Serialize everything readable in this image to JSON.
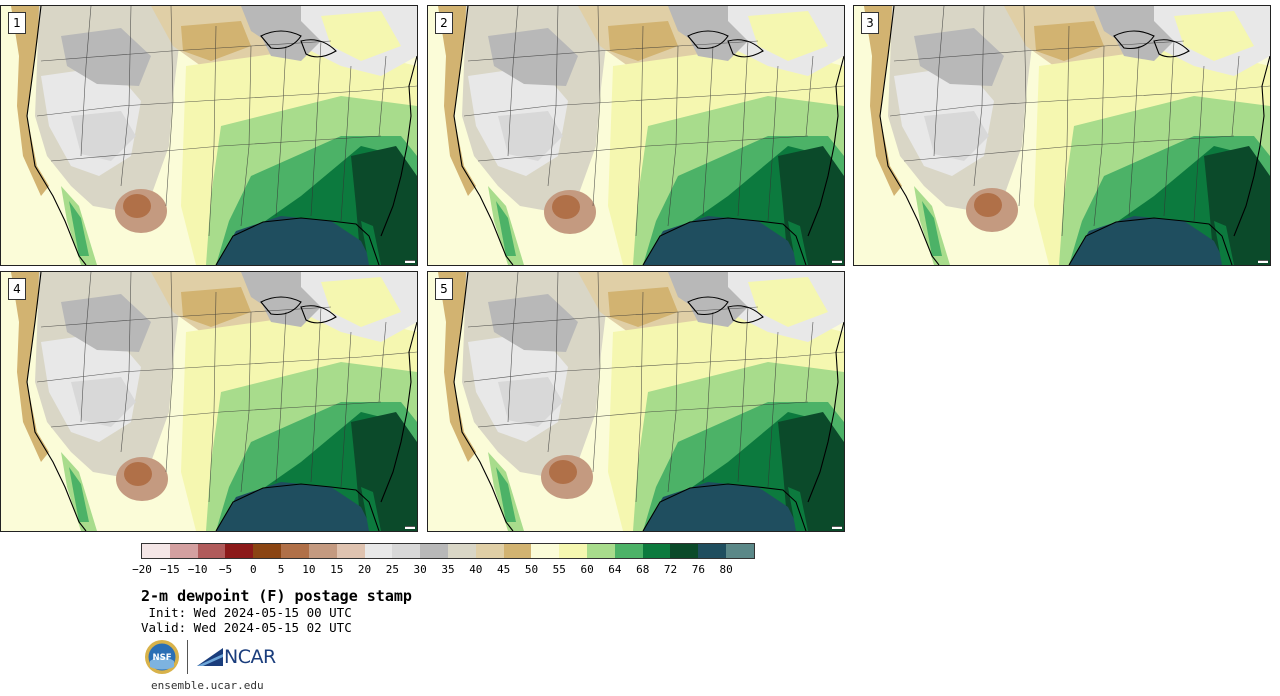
{
  "panels": [
    {
      "label": "1",
      "variant": 0
    },
    {
      "label": "2",
      "variant": 1
    },
    {
      "label": "3",
      "variant": 2
    },
    {
      "label": "4",
      "variant": 3
    },
    {
      "label": "5",
      "variant": 4
    }
  ],
  "colorbar": {
    "colors": [
      "#f4e6e6",
      "#d4a0a0",
      "#b05b5b",
      "#8c1a1a",
      "#8b4513",
      "#b07048",
      "#c49a80",
      "#dfc3b0",
      "#e8e8e8",
      "#d8d8d8",
      "#b8b8b8",
      "#d9d6c6",
      "#e0cfa6",
      "#d2b371",
      "#fbfcd8",
      "#f5f7b0",
      "#a8dc8c",
      "#4cb267",
      "#0c7a3e",
      "#0b4a2a",
      "#1f4e5f",
      "#5b8888"
    ],
    "ticks": [
      "−20",
      "−15",
      "−10",
      "−5",
      "0",
      "5",
      "10",
      "15",
      "20",
      "25",
      "30",
      "35",
      "40",
      "45",
      "50",
      "55",
      "60",
      "64",
      "68",
      "72",
      "76",
      "80"
    ]
  },
  "title": "2-m dewpoint (F) postage stamp",
  "init": " Init: Wed 2024-05-15 00 UTC",
  "valid": "Valid: Wed 2024-05-15 02 UTC",
  "logos": {
    "nsf": "NSF",
    "ncar": "NCAR"
  },
  "site": "ensemble.ucar.edu"
}
